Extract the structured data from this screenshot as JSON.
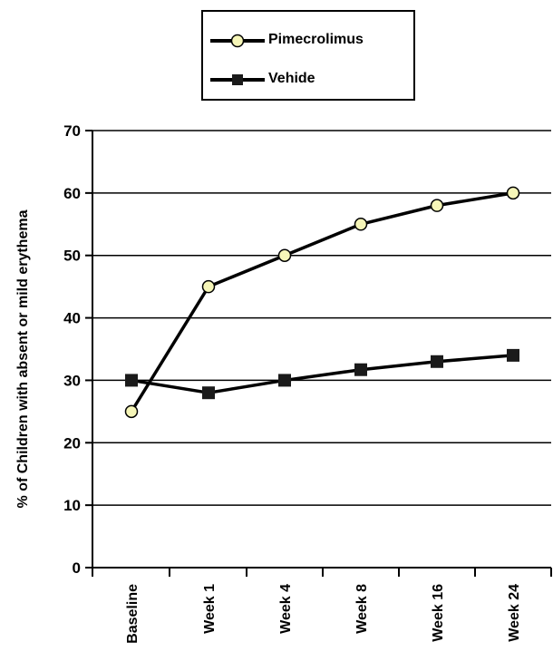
{
  "chart_data": {
    "type": "line",
    "categories": [
      "Baseline",
      "Week 1",
      "Week 4",
      "Week 8",
      "Week 16",
      "Week 24"
    ],
    "series": [
      {
        "name": "Pimecrolimus",
        "values": [
          25,
          45,
          50,
          55,
          58,
          60
        ],
        "marker": "circle",
        "marker_color": "#f6f6b8"
      },
      {
        "name": "Vehicle",
        "values": [
          30,
          28,
          30,
          31.7,
          33,
          34
        ],
        "marker": "square",
        "marker_color": "#1a1a1a"
      }
    ],
    "xlabel": "",
    "ylabel": "% of Children with absent or mild erythema",
    "ylim": [
      0,
      70
    ],
    "yticks": [
      0,
      10,
      20,
      30,
      40,
      50,
      60,
      70
    ],
    "grid": "horizontal",
    "legend_position": "top-center",
    "colors": {
      "line": "#000000",
      "circle_fill": "#f6f6b8",
      "square_fill": "#1a1a1a"
    }
  },
  "legend": {
    "items": [
      "Pimecrolimus",
      "Vehide"
    ]
  }
}
